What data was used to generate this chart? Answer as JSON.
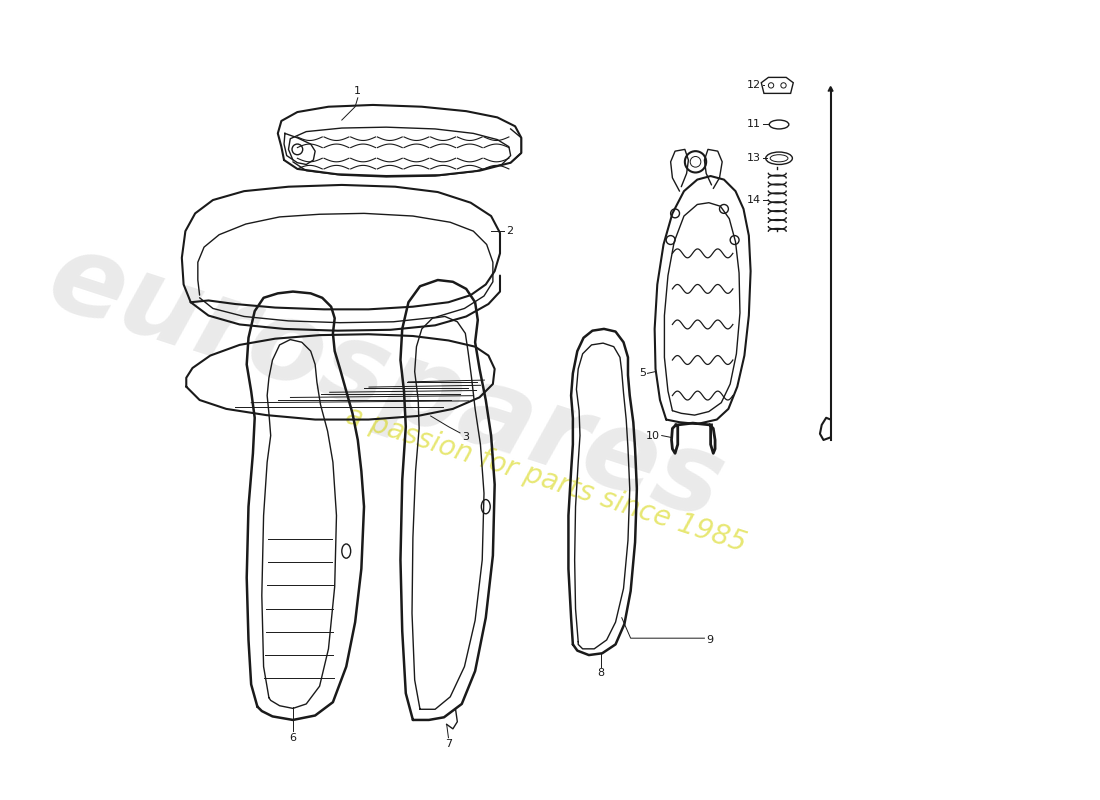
{
  "background_color": "#ffffff",
  "line_color": "#1a1a1a",
  "watermark_color": "#cccccc",
  "watermark_yellow": "#d4d400",
  "label_color": "#1a1a1a",
  "lw_main": 1.5,
  "lw_inner": 1.0,
  "lw_thin": 0.7
}
